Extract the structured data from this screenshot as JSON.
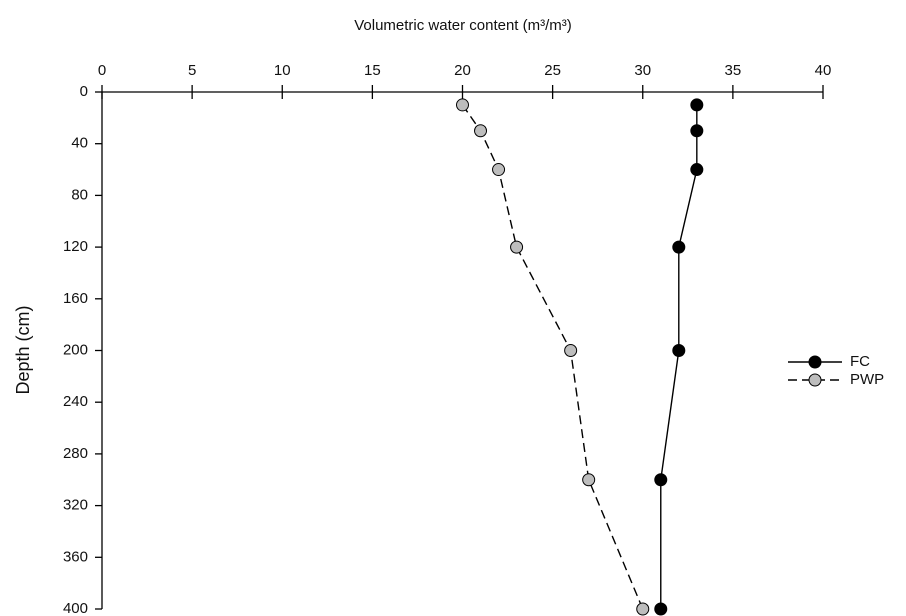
{
  "chart_data": {
    "type": "line",
    "xlabel": "Volumetric water content (m³/m³)",
    "ylabel": "Depth (cm)",
    "x_axis_position": "top",
    "y_inverted": true,
    "legend": "right",
    "xlim": [
      0,
      40
    ],
    "xticks": [
      0,
      5,
      10,
      15,
      20,
      25,
      30,
      35,
      40
    ],
    "ylim": [
      0,
      400
    ],
    "yticks": [
      0,
      40,
      80,
      120,
      160,
      200,
      240,
      280,
      320,
      360,
      400
    ],
    "y": [
      10,
      30,
      60,
      120,
      200,
      300,
      400
    ],
    "series": [
      {
        "name": "FC",
        "color": "#000000",
        "marker_color": "#000000",
        "dash": false,
        "values": [
          33,
          33,
          33,
          32,
          32,
          31,
          31
        ]
      },
      {
        "name": "PWP",
        "color": "#000000",
        "marker_color": "#bdbdbd",
        "dash": true,
        "values": [
          20,
          21,
          22,
          23,
          26,
          27,
          30
        ]
      }
    ]
  }
}
